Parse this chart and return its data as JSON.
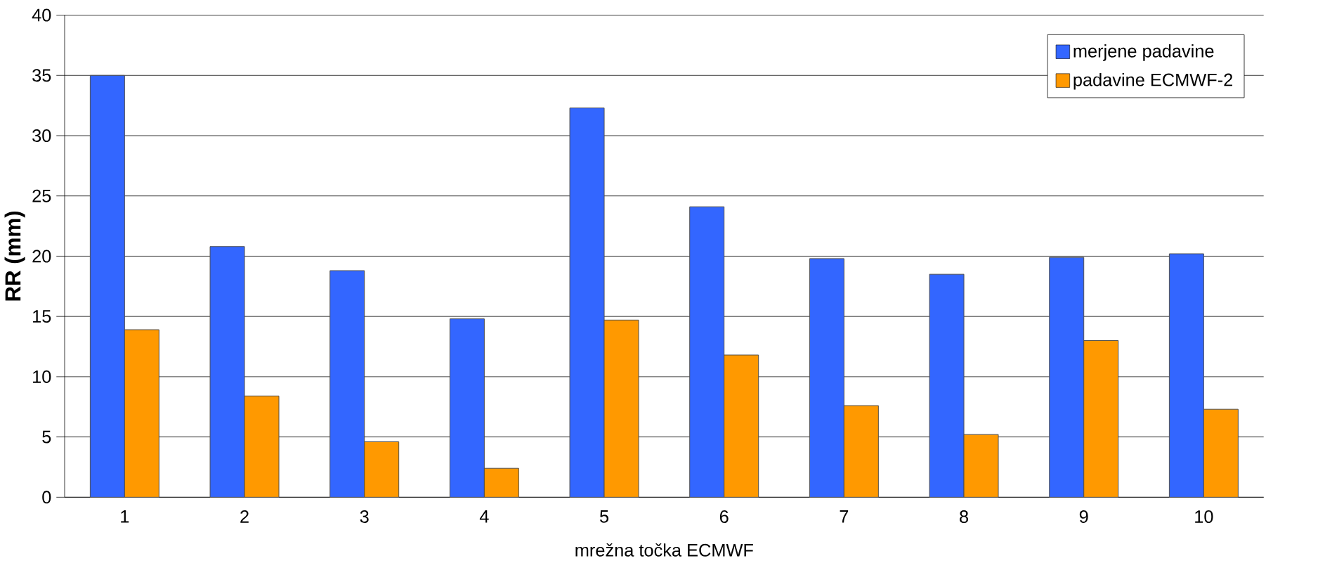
{
  "chart_data": {
    "type": "bar",
    "xlabel": "mrežna točka ECMWF",
    "ylabel": "**RR (mm)**",
    "categories": [
      "1",
      "2",
      "3",
      "4",
      "5",
      "6",
      "7",
      "8",
      "9",
      "10"
    ],
    "series": [
      {
        "name": "merjene padavine",
        "color": "#3366ff",
        "values": [
          35,
          20.8,
          18.8,
          14.8,
          32.3,
          24.1,
          19.8,
          18.5,
          19.9,
          20.2
        ]
      },
      {
        "name": "padavine ECMWF-2",
        "color": "#ff9900",
        "values": [
          13.9,
          8.4,
          4.6,
          2.4,
          14.7,
          11.8,
          7.6,
          5.2,
          13.0,
          7.3
        ]
      }
    ],
    "ylim": [
      0,
      40
    ],
    "yticks": [
      0,
      5,
      10,
      15,
      20,
      25,
      30,
      35,
      40
    ],
    "grid": "y",
    "legend": "top right"
  }
}
